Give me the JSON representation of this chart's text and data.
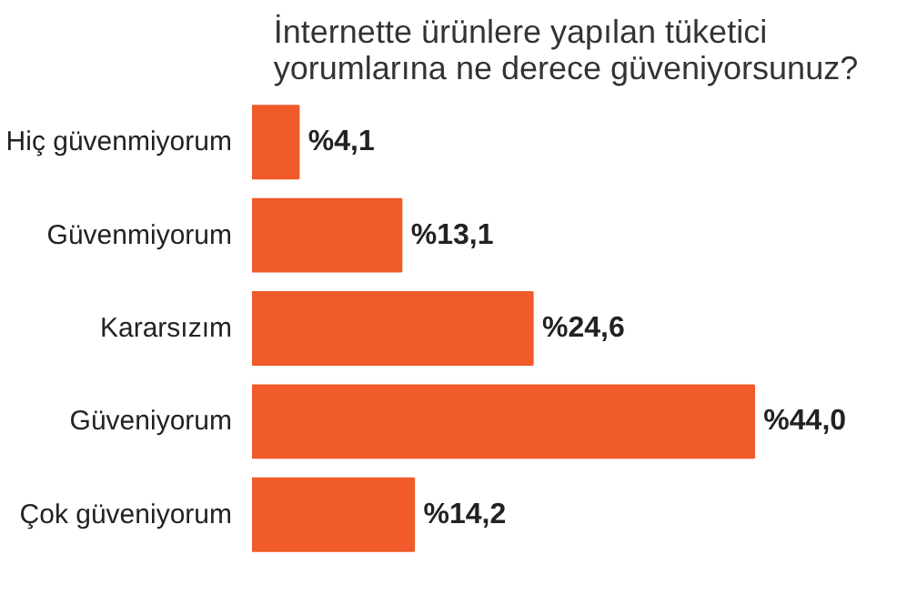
{
  "chart_data": {
    "type": "bar",
    "orientation": "horizontal",
    "title": "İnternette ürünlere yapılan tüketici yorumlarına ne derece güveniyorsunuz?",
    "categories": [
      "Hiç güvenmiyorum",
      "Güvenmiyorum",
      "Kararsızım",
      "Güveniyorum",
      "Çok güveniyorum"
    ],
    "values": [
      4.1,
      13.1,
      24.6,
      44.0,
      14.2
    ],
    "value_labels": [
      "%4,1",
      "%13,1",
      "%24,6",
      "%44,0",
      "%14,2"
    ],
    "color": "#f15a29",
    "grid": false
  }
}
